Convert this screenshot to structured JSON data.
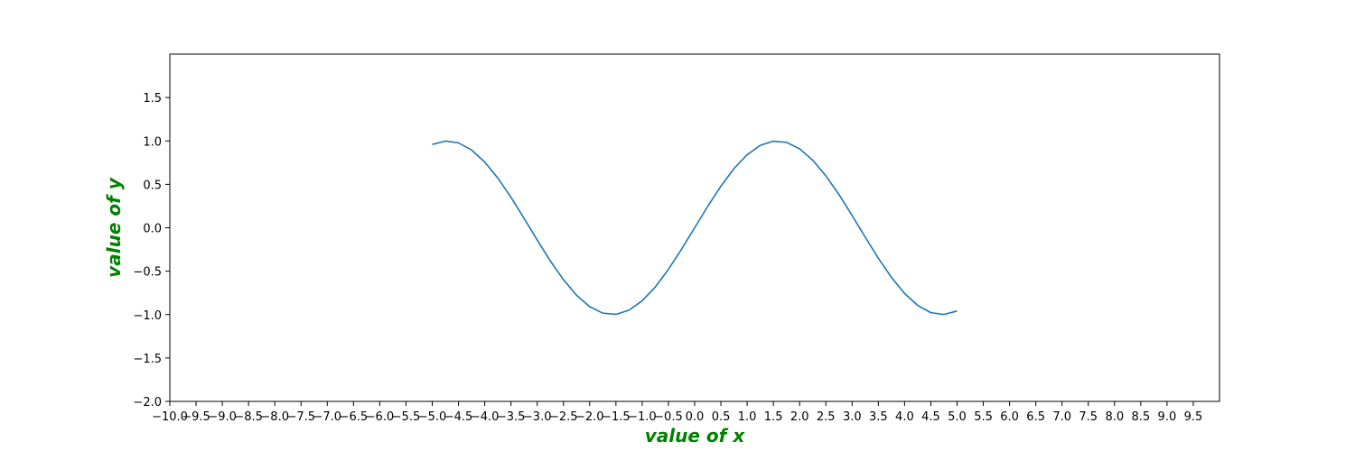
{
  "chart_data": {
    "type": "line",
    "title": "",
    "xlabel": "value of x",
    "ylabel": "value of y",
    "xlim": [
      -10.0,
      10.0
    ],
    "ylim": [
      -2.0,
      2.0
    ],
    "xticks": [
      -10.0,
      -9.5,
      -9.0,
      -8.5,
      -8.0,
      -7.5,
      -7.0,
      -6.5,
      -6.0,
      -5.5,
      -5.0,
      -4.5,
      -4.0,
      -3.5,
      -3.0,
      -2.5,
      -2.0,
      -1.5,
      -1.0,
      -0.5,
      0.0,
      0.5,
      1.0,
      1.5,
      2.0,
      2.5,
      3.0,
      3.5,
      4.0,
      4.5,
      5.0,
      5.5,
      6.0,
      6.5,
      7.0,
      7.5,
      8.0,
      8.5,
      9.0,
      9.5
    ],
    "xtick_labels": [
      "−10.0",
      "−9.5",
      "−9.0",
      "−8.5",
      "−8.0",
      "−7.5",
      "−7.0",
      "−6.5",
      "−6.0",
      "−5.5",
      "−5.0",
      "−4.5",
      "−4.0",
      "−3.5",
      "−3.0",
      "−2.5",
      "−2.0",
      "−1.5",
      "−1.0",
      "−0.5",
      "0.0",
      "0.5",
      "1.0",
      "1.5",
      "2.0",
      "2.5",
      "3.0",
      "3.5",
      "4.0",
      "4.5",
      "5.0",
      "5.5",
      "6.0",
      "6.5",
      "7.0",
      "7.5",
      "8.0",
      "8.5",
      "9.0",
      "9.5"
    ],
    "yticks": [
      -2.0,
      -1.5,
      -1.0,
      -0.5,
      0.0,
      0.5,
      1.0,
      1.5
    ],
    "ytick_labels": [
      "−2.0",
      "−1.5",
      "−1.0",
      "−0.5",
      "0.0",
      "0.5",
      "1.0",
      "1.5"
    ],
    "grid": false,
    "series": [
      {
        "color": "#1f77b4",
        "x": [
          -5.0,
          -4.75,
          -4.5,
          -4.25,
          -4.0,
          -3.75,
          -3.5,
          -3.25,
          -3.0,
          -2.75,
          -2.5,
          -2.25,
          -2.0,
          -1.75,
          -1.5,
          -1.25,
          -1.0,
          -0.75,
          -0.5,
          -0.25,
          0.0,
          0.25,
          0.5,
          0.75,
          1.0,
          1.25,
          1.5,
          1.75,
          2.0,
          2.25,
          2.5,
          2.75,
          3.0,
          3.25,
          3.5,
          3.75,
          4.0,
          4.25,
          4.5,
          4.75,
          5.0
        ],
        "y": [
          0.959,
          0.999,
          0.978,
          0.895,
          0.757,
          0.572,
          0.351,
          0.108,
          -0.141,
          -0.382,
          -0.598,
          -0.778,
          -0.909,
          -0.984,
          -0.997,
          -0.949,
          -0.841,
          -0.682,
          -0.479,
          -0.247,
          0.0,
          0.247,
          0.479,
          0.682,
          0.841,
          0.949,
          0.997,
          0.984,
          0.909,
          0.778,
          0.598,
          0.382,
          0.141,
          -0.108,
          -0.351,
          -0.572,
          -0.757,
          -0.895,
          -0.978,
          -0.999,
          -0.959
        ]
      }
    ]
  },
  "colors": {
    "axis_label": "#008000",
    "line": "#1f77b4",
    "frame": "#000000"
  }
}
